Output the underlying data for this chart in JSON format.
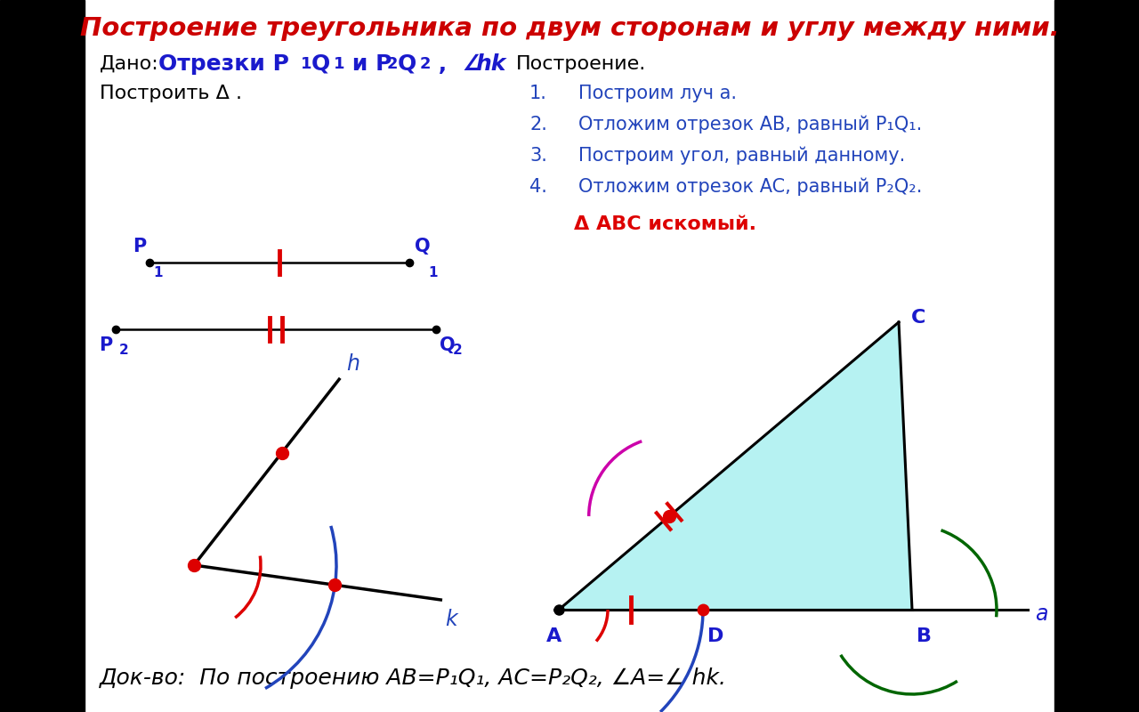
{
  "title": "Построение треугольника по двум сторонам и углу между ними.",
  "dado_label": "Дано:",
  "dado_bold": "Отрезки P",
  "dado_angle": "∠  hk",
  "postroit_label": "Построить Δ .",
  "postroenie_label": "Построение.",
  "steps": [
    "Построим луч a.",
    "Отложим отрезок AB, равный P₁Q₁.",
    "Построим угол, равный данному.",
    "Отложим отрезок AC, равный P₂Q₂."
  ],
  "result_text": "Δ ABC искомый.",
  "dokvo_text": "Док-во:  По построению AB=P₁Q₁, AC=P₂Q₂, ∠A=∠ hk.",
  "bg_color": "#ffffff",
  "title_color": "#cc0000",
  "text_color": "#000000",
  "blue_color": "#2244bb",
  "dark_blue": "#1a1acc",
  "black": "#000000",
  "red_color": "#dd0000",
  "green_color": "#006600",
  "magenta_color": "#cc00aa",
  "cyan_fill": "#aaf0f0"
}
